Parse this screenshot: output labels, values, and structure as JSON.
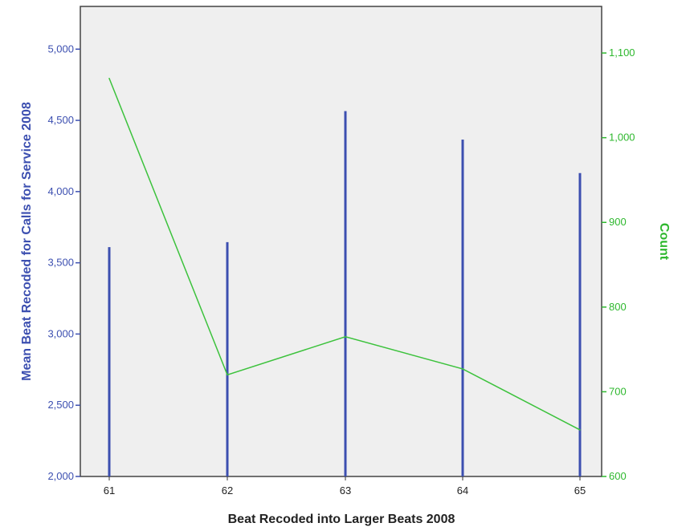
{
  "chart_data": {
    "type": "bar",
    "title": "",
    "xlabel": "Beat Recoded into Larger Beats 2008",
    "categories": [
      "61",
      "62",
      "63",
      "64",
      "65"
    ],
    "y_left": {
      "label": "Mean Beat Recoded for Calls for Service 2008",
      "lim": [
        2000,
        5300
      ],
      "ticks": [
        2000,
        2500,
        3000,
        3500,
        4000,
        4500,
        5000
      ],
      "tick_labels": [
        "2,000",
        "2,500",
        "3,000",
        "3,500",
        "4,000",
        "4,500",
        "5,000"
      ]
    },
    "y_right": {
      "label": "Count",
      "lim": [
        600,
        1155
      ],
      "ticks": [
        600,
        700,
        800,
        900,
        1000,
        1100
      ],
      "tick_labels": [
        "600",
        "700",
        "800",
        "900",
        "1,000",
        "1,100"
      ]
    },
    "series": [
      {
        "type": "bar",
        "axis": "left",
        "values": [
          3610,
          3645,
          4565,
          4365,
          4130
        ]
      },
      {
        "type": "line",
        "axis": "right",
        "values": [
          1070,
          720,
          765,
          727,
          655
        ]
      }
    ],
    "colors": {
      "bars": "#3c4fb0",
      "line": "#3cc23c",
      "left_axis": "#3c4fb0",
      "right_axis": "#2eb82e",
      "plot_bg": "#efefef",
      "frame": "#444444"
    },
    "grid": false
  }
}
